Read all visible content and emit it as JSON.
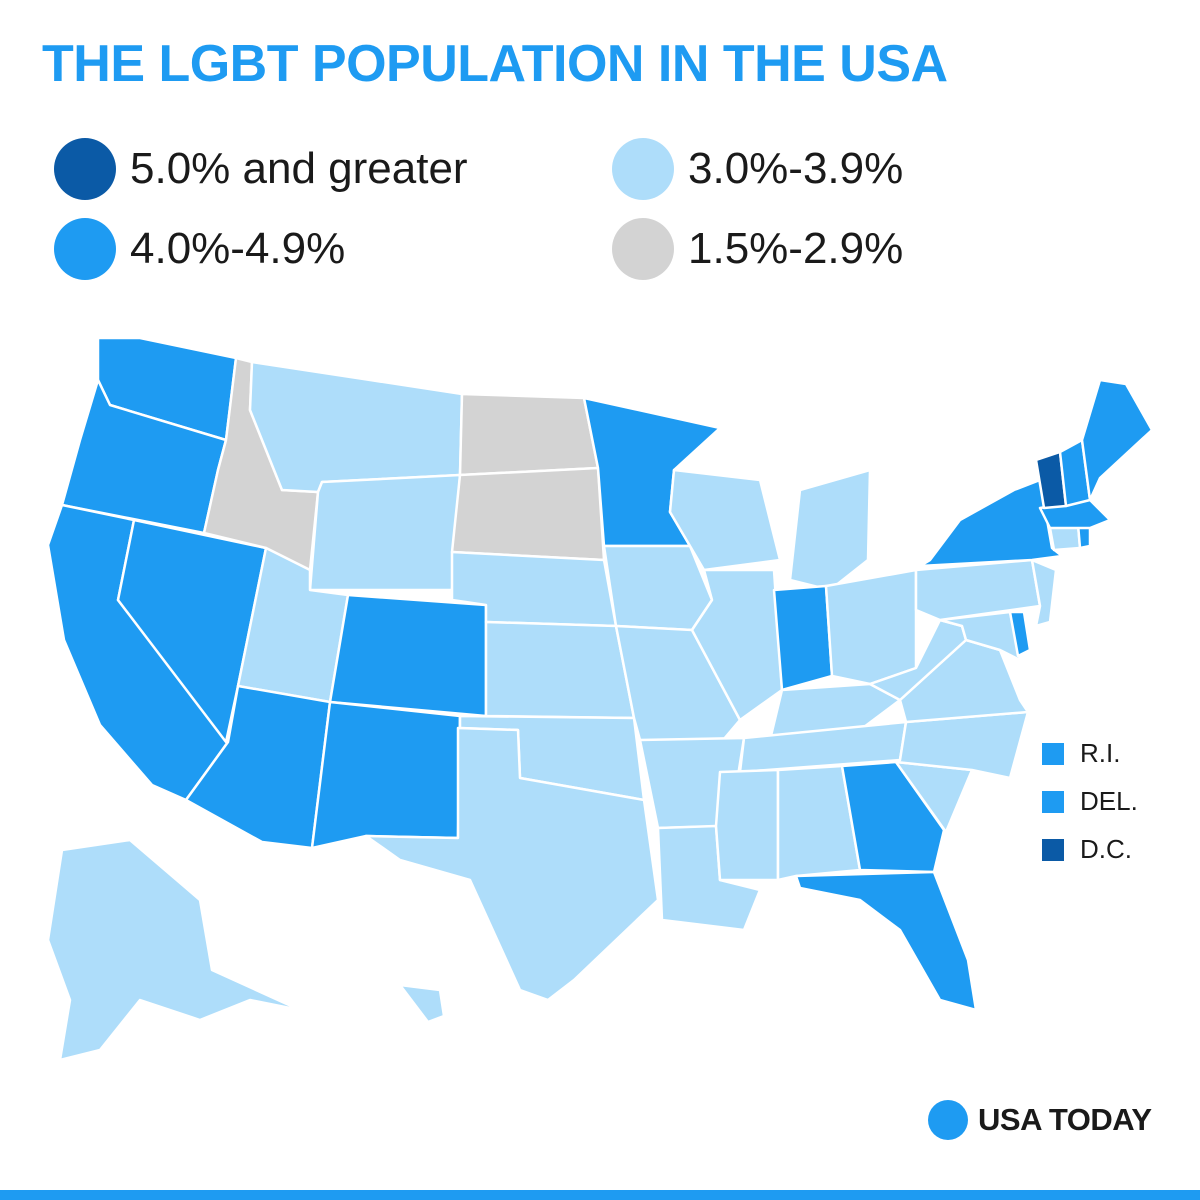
{
  "title": "THE LGBT POPULATION IN THE USA",
  "colors": {
    "title": "#1e9bf2",
    "tier_5_plus": "#0b5aa6",
    "tier_4": "#1e9bf2",
    "tier_3": "#aeddfa",
    "tier_1_5": "#d3d3d3",
    "border": "#ffffff",
    "brand": "#1e9bf2"
  },
  "legend": [
    {
      "label": "5.0% and greater",
      "color": "#0b5aa6"
    },
    {
      "label": "4.0%-4.9%",
      "color": "#1e9bf2"
    },
    {
      "label": "3.0%-3.9%",
      "color": "#aeddfa"
    },
    {
      "label": "1.5%-2.9%",
      "color": "#d3d3d3"
    }
  ],
  "small_states": [
    {
      "label": "R.I.",
      "tier": "4.0%-4.9%",
      "color": "#1e9bf2"
    },
    {
      "label": "DEL.",
      "tier": "4.0%-4.9%",
      "color": "#1e9bf2"
    },
    {
      "label": "D.C.",
      "tier": "5.0% and greater",
      "color": "#0b5aa6"
    }
  ],
  "brand": {
    "name": "USA TODAY",
    "icon": "brand-dot-icon"
  },
  "map_data": {
    "5.0% and greater": [
      "Vermont",
      "D.C."
    ],
    "4.0%-4.9%": [
      "Washington",
      "Oregon",
      "California",
      "Nevada",
      "Arizona",
      "Colorado",
      "New Mexico",
      "Minnesota",
      "Indiana",
      "Georgia",
      "Florida",
      "New York",
      "Maine",
      "New Hampshire",
      "Massachusetts",
      "Rhode Island",
      "Delaware"
    ],
    "3.0%-3.9%": [
      "Montana",
      "Wyoming",
      "Utah",
      "Nebraska",
      "Kansas",
      "Oklahoma",
      "Texas",
      "Iowa",
      "Missouri",
      "Arkansas",
      "Louisiana",
      "Wisconsin",
      "Illinois",
      "Michigan",
      "Ohio",
      "Kentucky",
      "Tennessee",
      "Mississippi",
      "Alabama",
      "South Carolina",
      "North Carolina",
      "Virginia",
      "West Virginia",
      "Maryland",
      "Pennsylvania",
      "New Jersey",
      "Connecticut",
      "Alaska",
      "Hawaii"
    ],
    "1.5%-2.9%": [
      "Idaho",
      "North Dakota",
      "South Dakota"
    ]
  }
}
